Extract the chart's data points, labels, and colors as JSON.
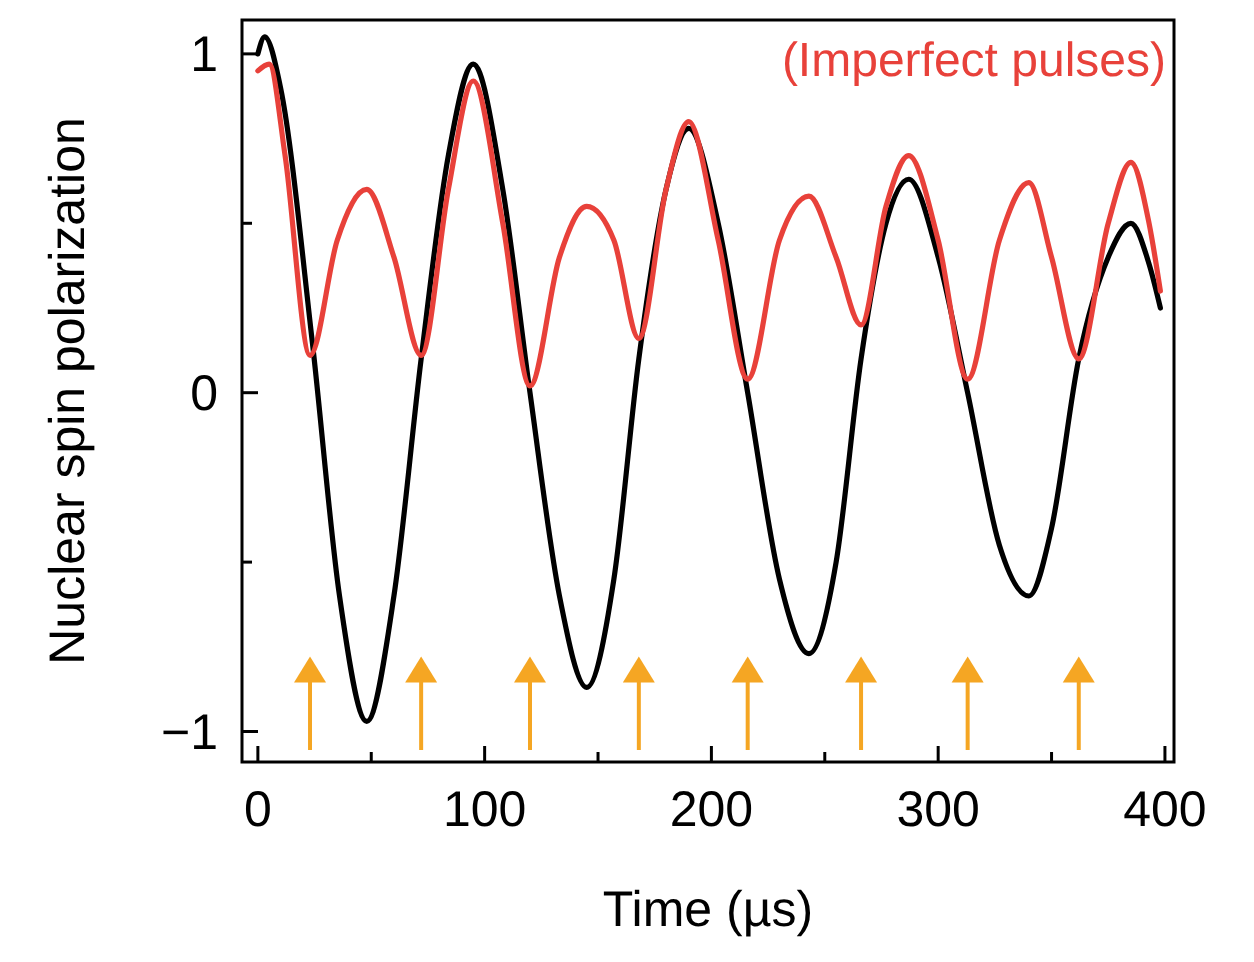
{
  "chart_data": {
    "type": "line",
    "xlabel": "Time (µs)",
    "ylabel": "Nuclear spin polarization",
    "xlim": [
      -7,
      404
    ],
    "ylim": [
      -1.09,
      1.1
    ],
    "xticks": [
      0,
      {
        "value": 50,
        "label": null
      },
      100,
      {
        "value": 150,
        "label": null
      },
      200,
      {
        "value": 250,
        "label": null
      },
      300,
      {
        "value": 350,
        "label": null
      },
      400
    ],
    "yticks": [
      {
        "value": -1,
        "label": "−1"
      },
      {
        "value": -0.5,
        "label": null
      },
      0,
      {
        "value": 0.5,
        "label": null
      },
      1
    ],
    "grid": false,
    "line_style": "solid",
    "series": [
      {
        "color": "#000000",
        "x": [
          0,
          3,
          10,
          24,
          36,
          48,
          60,
          72,
          84,
          95,
          108,
          120,
          133,
          145,
          157,
          168,
          180,
          190,
          203,
          216,
          230,
          243,
          255,
          266,
          277,
          287,
          300,
          313,
          327,
          340,
          350,
          362,
          375,
          385,
          393,
          398
        ],
        "values": [
          1.0,
          1.05,
          0.9,
          0.15,
          -0.6,
          -0.97,
          -0.6,
          0.1,
          0.7,
          0.97,
          0.6,
          0.0,
          -0.6,
          -0.87,
          -0.55,
          0.1,
          0.6,
          0.78,
          0.5,
          0.0,
          -0.55,
          -0.77,
          -0.5,
          0.1,
          0.5,
          0.63,
          0.4,
          0.0,
          -0.45,
          -0.6,
          -0.4,
          0.1,
          0.4,
          0.5,
          0.38,
          0.25
        ]
      },
      {
        "name": "(Imperfect pulses)",
        "color": "#e8413a",
        "x": [
          0,
          5,
          12,
          23,
          35,
          48,
          60,
          72,
          84,
          95,
          108,
          120,
          133,
          145,
          157,
          168,
          180,
          190,
          203,
          216,
          230,
          243,
          255,
          266,
          277,
          287,
          300,
          313,
          327,
          340,
          350,
          362,
          375,
          385,
          393,
          398
        ],
        "values": [
          0.95,
          0.97,
          0.7,
          0.11,
          0.45,
          0.6,
          0.4,
          0.11,
          0.6,
          0.92,
          0.5,
          0.02,
          0.4,
          0.55,
          0.45,
          0.16,
          0.6,
          0.8,
          0.45,
          0.04,
          0.45,
          0.58,
          0.4,
          0.2,
          0.55,
          0.7,
          0.45,
          0.04,
          0.45,
          0.62,
          0.4,
          0.1,
          0.5,
          0.68,
          0.5,
          0.3
        ]
      },
      {
        "type": "scatter",
        "marker": "triangle",
        "color": "#f5a623",
        "x": [
          23,
          72,
          120,
          168,
          216,
          266,
          313,
          362
        ],
        "values": [
          -0.82,
          -0.82,
          -0.82,
          -0.82,
          -0.82,
          -0.82,
          -0.82,
          -0.82
        ]
      }
    ]
  }
}
